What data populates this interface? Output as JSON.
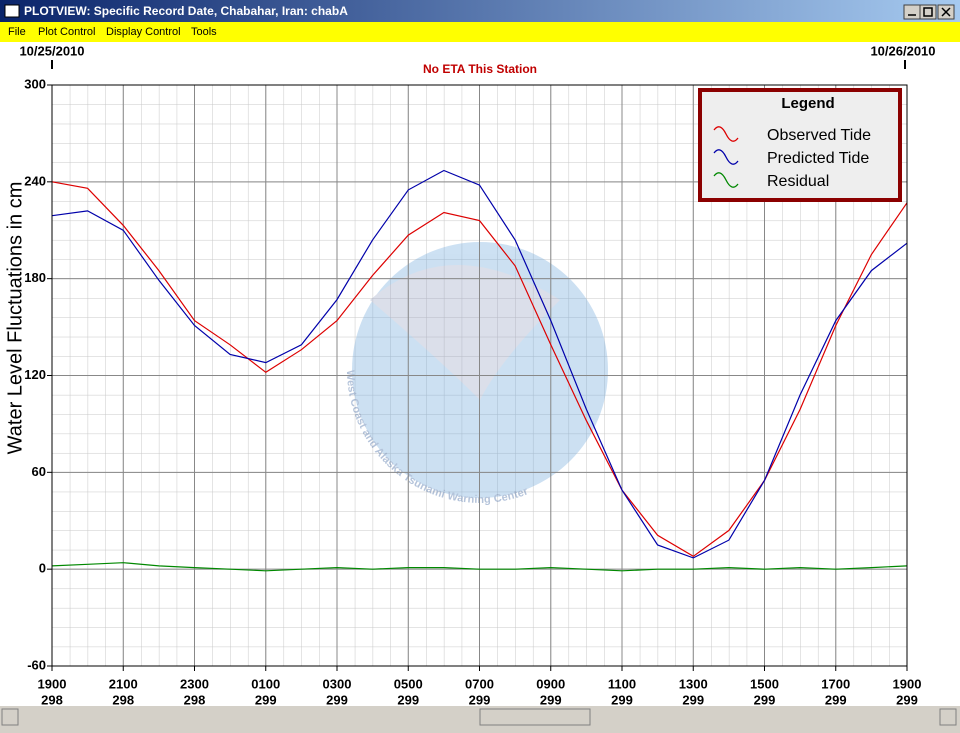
{
  "window": {
    "title": "PLOTVIEW: Specific Record Date, Chabahar, Iran: chabA",
    "menu": [
      "File",
      "Plot Control",
      "Display Control",
      "Tools"
    ]
  },
  "chart_data": {
    "type": "line",
    "annotation": "No ETA This Station",
    "date_start": "10/25/2010",
    "date_end": "10/26/2010",
    "watermark": "West Coast and Alaska Tsunami Warning Center",
    "y_label": "Water Level Fluctuations in cm",
    "legend_title": "Legend",
    "grid": true,
    "x": [
      0,
      1,
      2,
      3,
      4,
      5,
      6,
      7,
      8,
      9,
      10,
      11,
      12,
      13,
      14,
      15,
      16,
      17,
      18,
      19,
      20,
      21,
      22,
      23,
      24
    ],
    "xlim": [
      0,
      24
    ],
    "xticks": [
      {
        "value": 0,
        "label": "1900"
      },
      {
        "value": 2,
        "label": "2100"
      },
      {
        "value": 4,
        "label": "2300"
      },
      {
        "value": 6,
        "label": "0100"
      },
      {
        "value": 8,
        "label": "0300"
      },
      {
        "value": 10,
        "label": "0500"
      },
      {
        "value": 12,
        "label": "0700"
      },
      {
        "value": 14,
        "label": "0900"
      },
      {
        "value": 16,
        "label": "1100"
      },
      {
        "value": 18,
        "label": "1300"
      },
      {
        "value": 20,
        "label": "1500"
      },
      {
        "value": 22,
        "label": "1700"
      },
      {
        "value": 24,
        "label": "1900"
      }
    ],
    "xtick_days": [
      "298",
      "298",
      "298",
      "299",
      "299",
      "299",
      "299",
      "299",
      "299",
      "299",
      "299",
      "299",
      "299"
    ],
    "ylim": [
      -60,
      300
    ],
    "yticks": [
      -60,
      0,
      60,
      120,
      180,
      240,
      300
    ],
    "series": [
      {
        "name": "Observed Tide",
        "color": "#dd0000",
        "values": [
          240,
          236,
          213,
          185,
          154,
          139,
          122,
          136,
          154,
          182,
          207,
          221,
          216,
          188,
          139,
          92,
          49,
          21,
          8,
          24,
          55,
          99,
          151,
          195,
          227
        ]
      },
      {
        "name": "Predicted Tide",
        "color": "#0000aa",
        "values": [
          219,
          222,
          210,
          179,
          151,
          133,
          128,
          139,
          167,
          204,
          235,
          247,
          238,
          204,
          154,
          99,
          49,
          15,
          7,
          18,
          55,
          108,
          154,
          185,
          202
        ]
      },
      {
        "name": "Residual",
        "color": "#008800",
        "values": [
          2,
          3,
          4,
          2,
          1,
          0,
          -1,
          0,
          1,
          0,
          1,
          1,
          0,
          0,
          1,
          0,
          -1,
          0,
          0,
          1,
          0,
          1,
          0,
          1,
          2
        ]
      }
    ]
  }
}
